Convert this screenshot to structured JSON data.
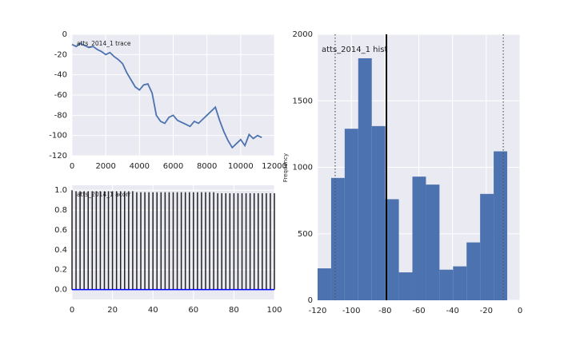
{
  "chart_data": [
    {
      "type": "line",
      "title": "atts_2014_1 trace",
      "color": "#4c72b0",
      "x": [
        0,
        250,
        500,
        750,
        1000,
        1250,
        1500,
        1750,
        2000,
        2250,
        2500,
        2750,
        3000,
        3250,
        3500,
        3750,
        4000,
        4250,
        4500,
        4750,
        5000,
        5250,
        5500,
        5750,
        6000,
        6250,
        6500,
        6750,
        7000,
        7250,
        7500,
        7750,
        8000,
        8250,
        8500,
        8750,
        9000,
        9250,
        9500,
        9750,
        10000,
        10250,
        10500,
        10750,
        11000,
        11250
      ],
      "values": [
        -10,
        -12,
        -9,
        -11,
        -13,
        -12,
        -15,
        -17,
        -20,
        -18,
        -22,
        -25,
        -29,
        -38,
        -45,
        -52,
        -55,
        -50,
        -49,
        -58,
        -80,
        -86,
        -88,
        -82,
        -80,
        -85,
        -87,
        -89,
        -91,
        -86,
        -88,
        -84,
        -80,
        -76,
        -72,
        -85,
        -96,
        -105,
        -112,
        -108,
        -104,
        -110,
        -99,
        -103,
        -100,
        -102
      ],
      "xlim": [
        0,
        12000
      ],
      "xticks": [
        0,
        2000,
        4000,
        6000,
        8000,
        10000,
        12000
      ],
      "ylim": [
        -120,
        0
      ],
      "yticks": [
        0,
        -20,
        -40,
        -60,
        -80,
        -100,
        -120
      ],
      "grid": true
    },
    {
      "type": "acorr",
      "title": "atts_2014_1 acorr",
      "color": "#222222",
      "baseline_color": "#0000ff",
      "x": [
        0,
        2,
        4,
        6,
        8,
        10,
        12,
        14,
        16,
        18,
        20,
        22,
        24,
        26,
        28,
        30,
        32,
        34,
        36,
        38,
        40,
        42,
        44,
        46,
        48,
        50,
        52,
        54,
        56,
        58,
        60,
        62,
        64,
        66,
        68,
        70,
        72,
        74,
        76,
        78,
        80,
        82,
        84,
        86,
        88,
        90,
        92,
        94,
        96,
        98,
        100
      ],
      "values": [
        1.0,
        0.99,
        0.99,
        0.99,
        0.99,
        0.99,
        0.99,
        0.99,
        0.99,
        0.99,
        0.99,
        0.99,
        0.99,
        0.99,
        0.99,
        0.99,
        0.98,
        0.98,
        0.98,
        0.98,
        0.98,
        0.98,
        0.98,
        0.98,
        0.98,
        0.98,
        0.98,
        0.98,
        0.98,
        0.98,
        0.98,
        0.98,
        0.98,
        0.98,
        0.98,
        0.98,
        0.97,
        0.97,
        0.97,
        0.97,
        0.97,
        0.97,
        0.97,
        0.97,
        0.97,
        0.97,
        0.97,
        0.97,
        0.97,
        0.97,
        0.97
      ],
      "xlim": [
        0,
        100
      ],
      "xticks": [
        0,
        20,
        40,
        60,
        80,
        100
      ],
      "ylim": [
        -0.1,
        1.05
      ],
      "yticks": [
        {
          "value": 0,
          "label": "0.0"
        },
        0.2,
        0.4,
        0.6,
        0.8,
        {
          "value": 1,
          "label": "1.0"
        }
      ],
      "grid": true
    },
    {
      "type": "histogram",
      "title": "atts_2014_1 hist",
      "ylabel": "Frequency",
      "color": "#4c72b0",
      "bins": [
        -120,
        -111.97,
        -103.94,
        -95.91,
        -87.88,
        -79.85,
        -71.82,
        -63.79,
        -55.76,
        -47.73,
        -39.7,
        -31.67,
        -23.64,
        -15.61,
        -7.58
      ],
      "values": [
        240,
        920,
        1290,
        1820,
        1310,
        760,
        210,
        930,
        870,
        230,
        255,
        435,
        800,
        1120
      ],
      "vlines": [
        -79.2
      ],
      "dotted_vlines": [
        -109.6,
        -9.9
      ],
      "xlim": [
        -120,
        0
      ],
      "xticks": [
        -120,
        -100,
        -80,
        -60,
        -40,
        -20,
        0
      ],
      "ylim": [
        0,
        2000
      ],
      "yticks": [
        0,
        500,
        1000,
        1500,
        2000
      ],
      "grid": true
    }
  ]
}
